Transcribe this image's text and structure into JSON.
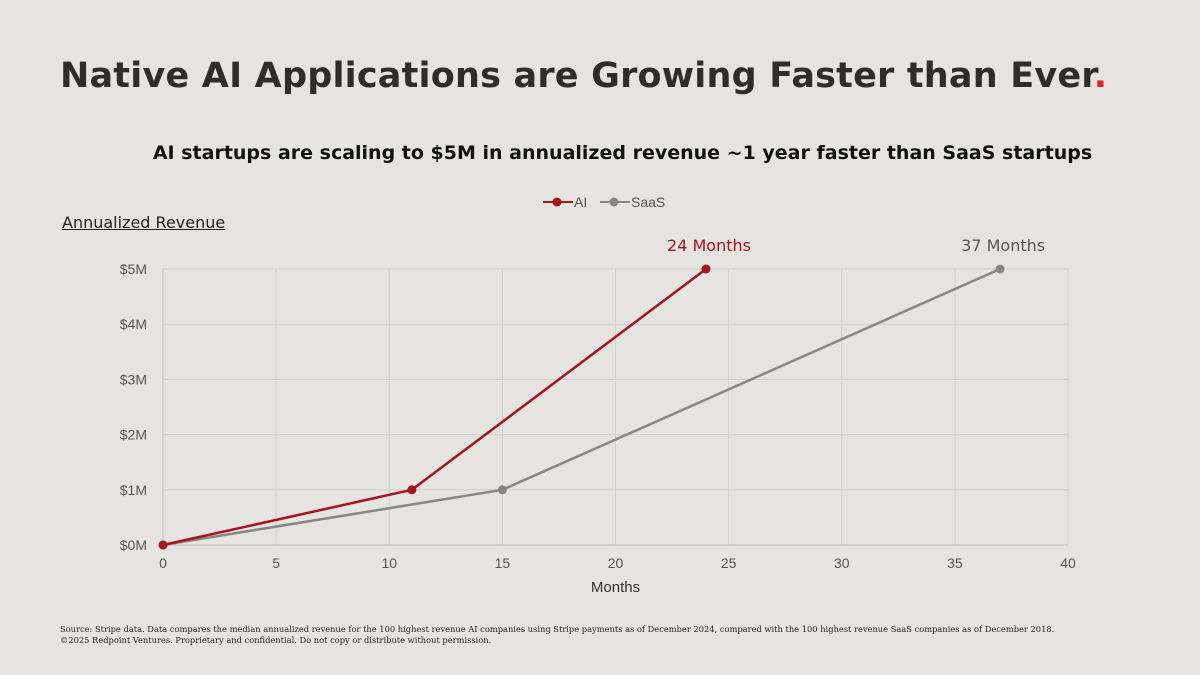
{
  "slide": {
    "title": "Native AI Applications are Growing Faster than Ever",
    "title_dot": ".",
    "footnote_line1": "Source: Stripe data. Data compares the median annualized revenue for the 100 highest revenue AI companies using Stripe payments as of December 2024, compared with the 100 highest revenue SaaS companies as of December 2018.",
    "footnote_line2": "©2025 Redpoint Ventures. Proprietary and confidential. Do not copy or distribute without permission."
  },
  "chart_data": {
    "type": "line",
    "title": "AI startups are scaling to $5M in annualized revenue ~1 year faster than SaaS startups",
    "xlabel": "Months",
    "ylabel": "Annualized Revenue",
    "xlim": [
      0,
      40
    ],
    "ylim": [
      0,
      5
    ],
    "xticks": [
      0,
      5,
      10,
      15,
      20,
      25,
      30,
      35,
      40
    ],
    "yticks": [
      0,
      1,
      2,
      3,
      4,
      5
    ],
    "ytick_labels": [
      "$0M",
      "$1M",
      "$2M",
      "$3M",
      "$4M",
      "$5M"
    ],
    "grid": true,
    "legend_position": "top-center",
    "series": [
      {
        "name": "AI",
        "color": "#a8141c",
        "x": [
          0,
          11,
          24
        ],
        "y": [
          0,
          1,
          5
        ]
      },
      {
        "name": "SaaS",
        "color": "#888684",
        "x": [
          0,
          15,
          37
        ],
        "y": [
          0,
          1,
          5
        ]
      }
    ],
    "annotations": [
      {
        "series": "AI",
        "text": "24 Months",
        "x": 24,
        "y": 5,
        "color": "#a8141c"
      },
      {
        "series": "SaaS",
        "text": "37 Months",
        "x": 37,
        "y": 5,
        "color": "#555555"
      }
    ]
  }
}
